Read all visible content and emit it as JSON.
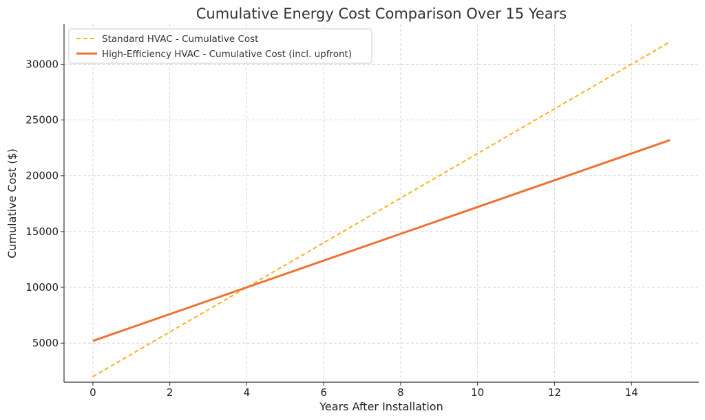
{
  "chart_data": {
    "type": "line",
    "title": "Cumulative Energy Cost Comparison Over 15 Years",
    "xlabel": "Years After Installation",
    "ylabel": "Cumulative Cost ($)",
    "xlim": [
      -0.75,
      15.75
    ],
    "ylim": [
      1500,
      33600
    ],
    "xticks": [
      0,
      2,
      4,
      6,
      8,
      10,
      12,
      14
    ],
    "yticks": [
      5000,
      10000,
      15000,
      20000,
      25000,
      30000
    ],
    "grid": true,
    "legend_position": "top-left",
    "series": [
      {
        "name": "Standard HVAC - Cumulative Cost",
        "style": "dashed",
        "color": "#fbb117",
        "x": [
          0,
          15
        ],
        "y": [
          2000,
          32000
        ]
      },
      {
        "name": "High-Efficiency HVAC - Cumulative Cost (incl. upfront)",
        "style": "solid",
        "color": "#f07030",
        "x": [
          0,
          15
        ],
        "y": [
          5200,
          23200
        ]
      }
    ]
  }
}
